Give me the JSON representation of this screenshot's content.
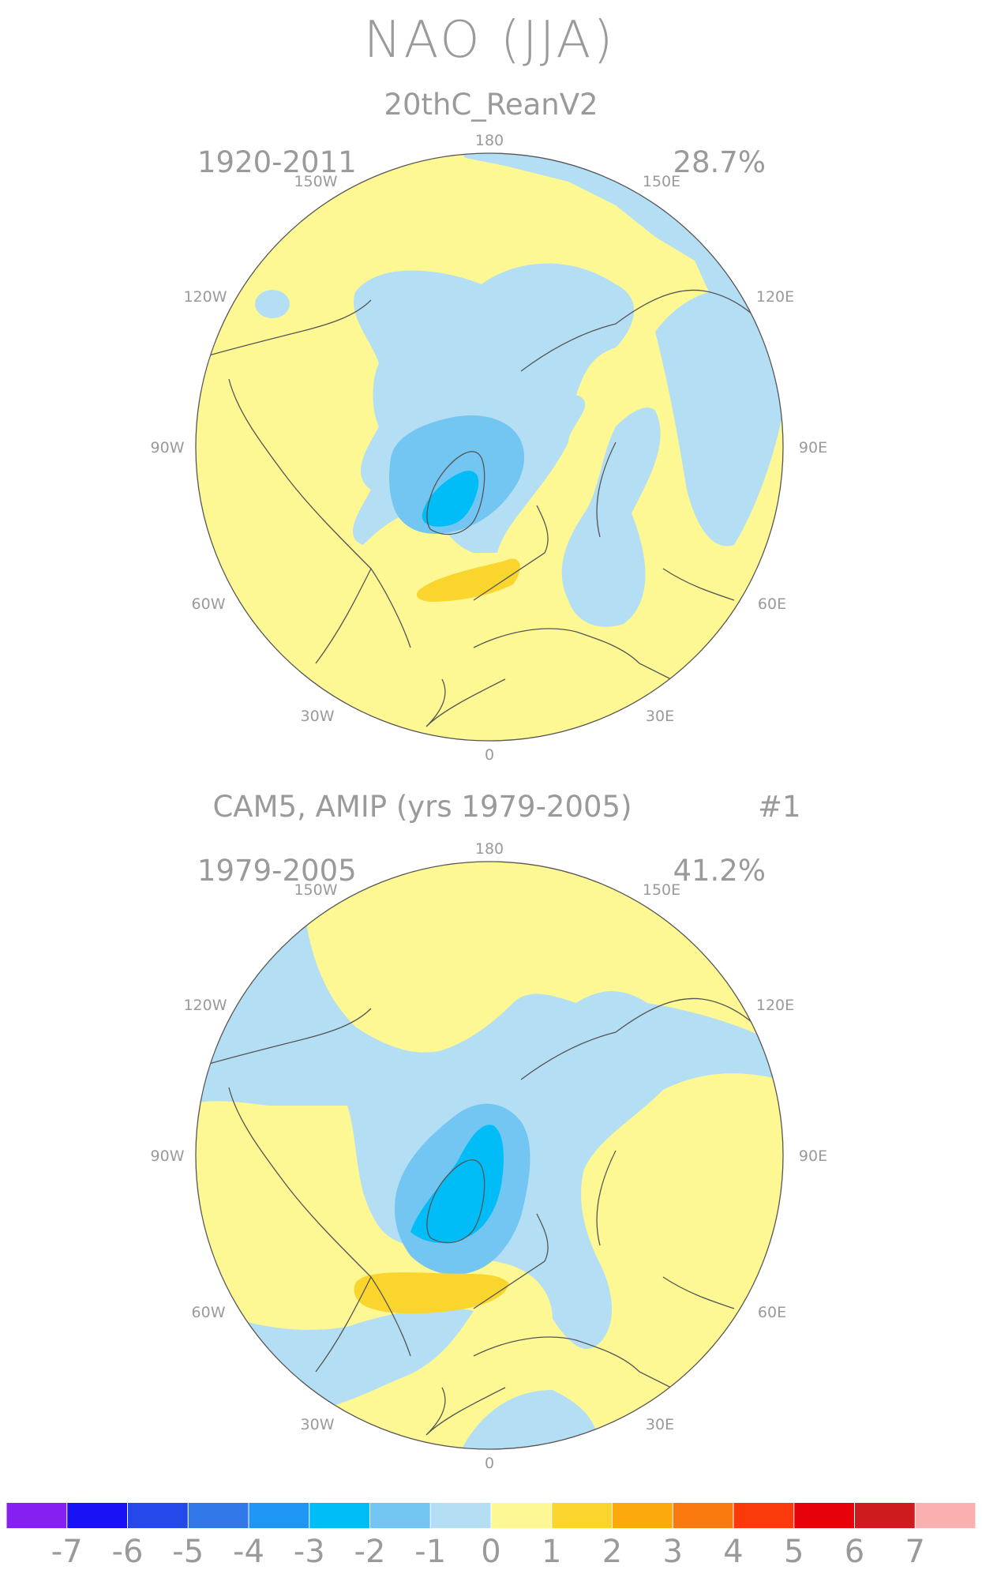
{
  "title": "NAO (JJA)",
  "colors": {
    "land_outline": "#555555",
    "text": "#9a9a9a",
    "neg1": "#b4def4",
    "neg2": "#73c6f2",
    "neg3": "#00bdf7",
    "pos1": "#fdf893",
    "pos2": "#fad52d"
  },
  "longitude_labels": {
    "top": "180",
    "bottom": "0",
    "w150": "150W",
    "e150": "150E",
    "w120": "120W",
    "e120": "120E",
    "w90": "90W",
    "e90": "90E",
    "w60": "60W",
    "e60": "60E",
    "w30": "30W",
    "e30": "30E"
  },
  "panels": [
    {
      "subtitle": "20thC_ReanV2",
      "years": "1920-2011",
      "variance": "28.7%",
      "tag": ""
    },
    {
      "subtitle": "CAM5, AMIP (yrs 1979-2005)",
      "years": "1979-2005",
      "variance": "41.2%",
      "tag": "#1"
    }
  ],
  "colorbar": {
    "colors": [
      "#8620f0",
      "#1a12f5",
      "#2548ea",
      "#3278e8",
      "#1e96f4",
      "#00bdf7",
      "#73c6f2",
      "#b4def4",
      "#fdf893",
      "#fad52d",
      "#fca90e",
      "#fb7a0f",
      "#fb3a0b",
      "#e7010b",
      "#ce1c1e",
      "#fbb0b0"
    ],
    "labels": [
      "-7",
      "-6",
      "-5",
      "-4",
      "-3",
      "-2",
      "-1",
      "0",
      "1",
      "2",
      "3",
      "4",
      "5",
      "6",
      "7"
    ]
  }
}
